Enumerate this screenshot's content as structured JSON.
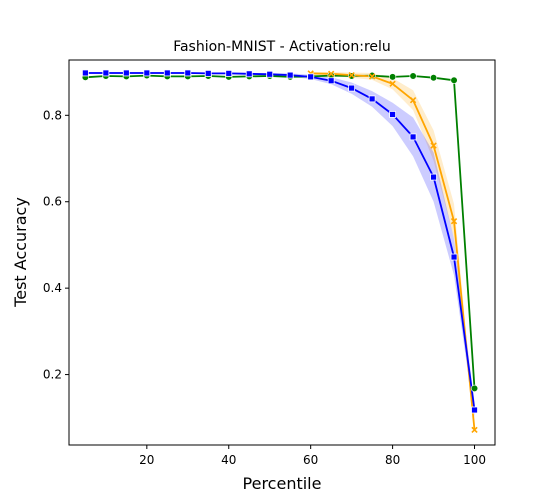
{
  "chart_data": {
    "type": "line",
    "title": "Fashion-MNIST - Activation:relu",
    "xlabel": "Percentile",
    "ylabel": "Test Accuracy",
    "xlim": [
      1,
      105
    ],
    "ylim": [
      0.037,
      0.928
    ],
    "xticks": [
      20,
      40,
      60,
      80,
      100
    ],
    "yticks": [
      0.2,
      0.4,
      0.6,
      0.8
    ],
    "grid": false,
    "legend": "none",
    "x": [
      5,
      10,
      15,
      20,
      25,
      30,
      35,
      40,
      45,
      50,
      55,
      60,
      65,
      70,
      75,
      80,
      85,
      90,
      95,
      100
    ],
    "series": [
      {
        "color": "#008000",
        "marker": "circle",
        "band": false,
        "x": [
          5,
          10,
          15,
          20,
          25,
          30,
          35,
          40,
          45,
          50,
          55,
          60,
          65,
          70,
          75,
          80,
          85,
          90,
          95,
          100
        ],
        "values": [
          0.888,
          0.891,
          0.89,
          0.892,
          0.89,
          0.89,
          0.891,
          0.889,
          0.89,
          0.891,
          0.889,
          0.89,
          0.892,
          0.891,
          0.892,
          0.889,
          0.891,
          0.887,
          0.881,
          0.168
        ]
      },
      {
        "color": "#ffa500",
        "marker": "x",
        "band": true,
        "x": [
          60,
          65,
          70,
          75,
          80,
          85,
          90,
          95,
          100
        ],
        "values": [
          0.897,
          0.896,
          0.893,
          0.89,
          0.873,
          0.835,
          0.73,
          0.555,
          0.072
        ],
        "lower": [
          0.894,
          0.892,
          0.887,
          0.882,
          0.86,
          0.812,
          0.695,
          0.515,
          0.06
        ],
        "upper": [
          0.9,
          0.9,
          0.899,
          0.898,
          0.886,
          0.858,
          0.765,
          0.595,
          0.09
        ]
      },
      {
        "color": "#0000ff",
        "marker": "square",
        "band": true,
        "x": [
          5,
          10,
          15,
          20,
          25,
          30,
          35,
          40,
          45,
          50,
          55,
          60,
          65,
          70,
          75,
          80,
          85,
          90,
          95,
          100
        ],
        "values": [
          0.898,
          0.898,
          0.898,
          0.898,
          0.898,
          0.898,
          0.897,
          0.897,
          0.896,
          0.895,
          0.893,
          0.889,
          0.88,
          0.863,
          0.838,
          0.802,
          0.75,
          0.657,
          0.472,
          0.118
        ],
        "lower": [
          0.896,
          0.896,
          0.896,
          0.896,
          0.896,
          0.896,
          0.895,
          0.895,
          0.894,
          0.892,
          0.889,
          0.884,
          0.872,
          0.85,
          0.82,
          0.775,
          0.705,
          0.6,
          0.43,
          0.1
        ],
        "upper": [
          0.9,
          0.9,
          0.9,
          0.9,
          0.9,
          0.9,
          0.899,
          0.899,
          0.898,
          0.898,
          0.897,
          0.894,
          0.888,
          0.876,
          0.856,
          0.829,
          0.795,
          0.714,
          0.514,
          0.136
        ]
      }
    ]
  }
}
